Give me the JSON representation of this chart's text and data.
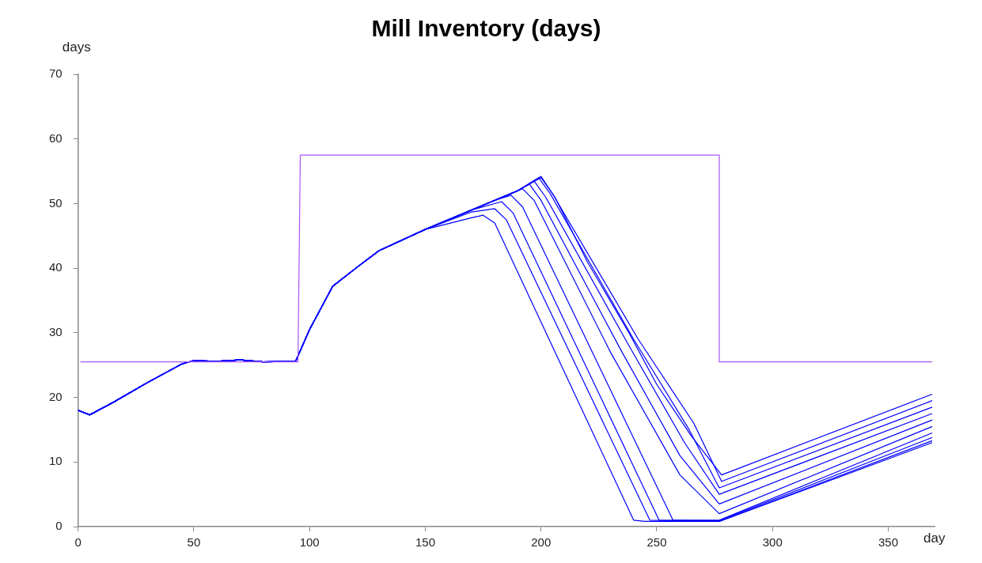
{
  "chart_data": {
    "type": "line",
    "title": "Mill Inventory (days)",
    "xlabel": "day",
    "ylabel": "days",
    "xlim": [
      0,
      370
    ],
    "ylim": [
      0,
      70
    ],
    "xticks": [
      0,
      50,
      100,
      150,
      200,
      250,
      300,
      350
    ],
    "yticks": [
      0,
      10,
      20,
      30,
      40,
      50,
      60,
      70
    ],
    "grid": false,
    "legend": false,
    "marker": "none",
    "line_style": "solid",
    "series": [
      {
        "color": "#a855f7",
        "x": [
          1,
          95,
          96,
          277,
          277,
          369
        ],
        "values": [
          25.5,
          25.5,
          57.5,
          57.5,
          25.5,
          25.5
        ]
      },
      {
        "color": "#0000ff",
        "x": [
          0,
          5,
          15,
          30,
          45,
          50,
          60,
          70,
          80,
          94,
          100,
          110,
          120,
          130,
          150,
          170,
          175,
          180,
          240,
          245,
          277,
          369
        ],
        "values": [
          18,
          17.3,
          19.2,
          22.3,
          25.2,
          25.7,
          25.6,
          25.8,
          25.5,
          25.6,
          30.5,
          37.2,
          40,
          42.7,
          46,
          47.8,
          48.2,
          47,
          1,
          0.8,
          0.8,
          13
        ]
      },
      {
        "color": "#0000ff",
        "x": [
          0,
          5,
          15,
          30,
          45,
          50,
          60,
          70,
          80,
          94,
          100,
          110,
          120,
          130,
          150,
          170,
          180,
          185,
          247,
          277,
          369
        ],
        "values": [
          18,
          17.3,
          19.2,
          22.3,
          25.2,
          25.7,
          25.6,
          25.8,
          25.5,
          25.6,
          30.5,
          37.2,
          40,
          42.7,
          46,
          48.7,
          49.2,
          47.5,
          1,
          0.8,
          13.3
        ]
      },
      {
        "color": "#0000ff",
        "x": [
          0,
          5,
          15,
          30,
          45,
          50,
          60,
          70,
          80,
          94,
          100,
          110,
          120,
          130,
          150,
          170,
          183,
          188,
          251,
          277,
          369
        ],
        "values": [
          18,
          17.3,
          19.2,
          22.3,
          25.2,
          25.7,
          25.6,
          25.8,
          25.5,
          25.6,
          30.5,
          37.2,
          40,
          42.7,
          46,
          49,
          50.3,
          48.5,
          1,
          0.9,
          13.8
        ]
      },
      {
        "color": "#0000ff",
        "x": [
          0,
          5,
          15,
          30,
          45,
          50,
          60,
          70,
          80,
          94,
          100,
          110,
          120,
          130,
          150,
          170,
          180,
          187,
          192,
          257,
          277,
          369
        ],
        "values": [
          18,
          17.3,
          19.2,
          22.3,
          25.2,
          25.7,
          25.6,
          25.8,
          25.5,
          25.6,
          30.5,
          37.2,
          40,
          42.7,
          46,
          49,
          50.5,
          51.3,
          49.5,
          1,
          1,
          14.5
        ]
      },
      {
        "color": "#0000ff",
        "x": [
          0,
          5,
          15,
          30,
          45,
          50,
          60,
          70,
          80,
          94,
          100,
          110,
          120,
          130,
          150,
          170,
          180,
          192,
          197,
          230,
          260,
          277,
          369
        ],
        "values": [
          18,
          17.3,
          19.2,
          22.3,
          25.2,
          25.7,
          25.6,
          25.8,
          25.5,
          25.6,
          30.5,
          37.2,
          40,
          42.7,
          46,
          49,
          50.5,
          52.3,
          50.5,
          27,
          8,
          2,
          15.5
        ]
      },
      {
        "color": "#0000ff",
        "x": [
          0,
          5,
          15,
          30,
          45,
          50,
          60,
          70,
          80,
          94,
          100,
          110,
          120,
          130,
          150,
          170,
          180,
          190,
          195,
          200,
          235,
          260,
          277,
          369
        ],
        "values": [
          18,
          17.3,
          19.2,
          22.3,
          25.2,
          25.7,
          25.6,
          25.8,
          25.5,
          25.6,
          30.5,
          37.2,
          40,
          42.7,
          46,
          49,
          50.5,
          52,
          53,
          50.5,
          27,
          11,
          3.5,
          16.5
        ]
      },
      {
        "color": "#0000ff",
        "x": [
          0,
          5,
          15,
          30,
          45,
          50,
          60,
          70,
          80,
          94,
          100,
          110,
          120,
          130,
          150,
          170,
          180,
          190,
          197,
          202,
          238,
          262,
          277,
          369
        ],
        "values": [
          18,
          17.3,
          19.2,
          22.3,
          25.2,
          25.7,
          25.6,
          25.8,
          25.5,
          25.6,
          30.5,
          37.2,
          40,
          42.7,
          46,
          49,
          50.5,
          52,
          53.5,
          51,
          28,
          13,
          5,
          17.5
        ]
      },
      {
        "color": "#0000ff",
        "x": [
          0,
          5,
          15,
          30,
          45,
          50,
          60,
          70,
          80,
          94,
          100,
          110,
          120,
          130,
          150,
          170,
          180,
          190,
          199,
          204,
          240,
          264,
          277,
          369
        ],
        "values": [
          18,
          17.3,
          19.2,
          22.3,
          25.2,
          25.7,
          25.6,
          25.8,
          25.5,
          25.6,
          30.5,
          37.2,
          40,
          42.7,
          46,
          49,
          50.5,
          52,
          54,
          51.5,
          29,
          15,
          6,
          18.5
        ]
      },
      {
        "color": "#0000ff",
        "x": [
          0,
          5,
          15,
          30,
          45,
          50,
          60,
          70,
          80,
          94,
          100,
          110,
          120,
          130,
          150,
          170,
          180,
          190,
          200,
          205,
          242,
          266,
          278,
          369
        ],
        "values": [
          18,
          17.3,
          19.2,
          22.3,
          25.2,
          25.7,
          25.6,
          25.8,
          25.5,
          25.6,
          30.5,
          37.2,
          40,
          42.7,
          46,
          49,
          50.5,
          52,
          54.2,
          51.5,
          29,
          16,
          7,
          19.5
        ]
      },
      {
        "color": "#0000ff",
        "x": [
          0,
          5,
          15,
          30,
          45,
          50,
          60,
          70,
          80,
          94,
          100,
          110,
          120,
          130,
          150,
          170,
          180,
          190,
          200,
          206,
          220,
          238,
          250,
          265,
          278,
          369
        ],
        "values": [
          18,
          17.3,
          19.2,
          22.3,
          25.2,
          25.7,
          25.6,
          25.8,
          25.5,
          25.6,
          30.5,
          37.2,
          40,
          42.7,
          46,
          49,
          50.5,
          52,
          54,
          51,
          41,
          30,
          22,
          14,
          8,
          20.5
        ]
      }
    ]
  }
}
